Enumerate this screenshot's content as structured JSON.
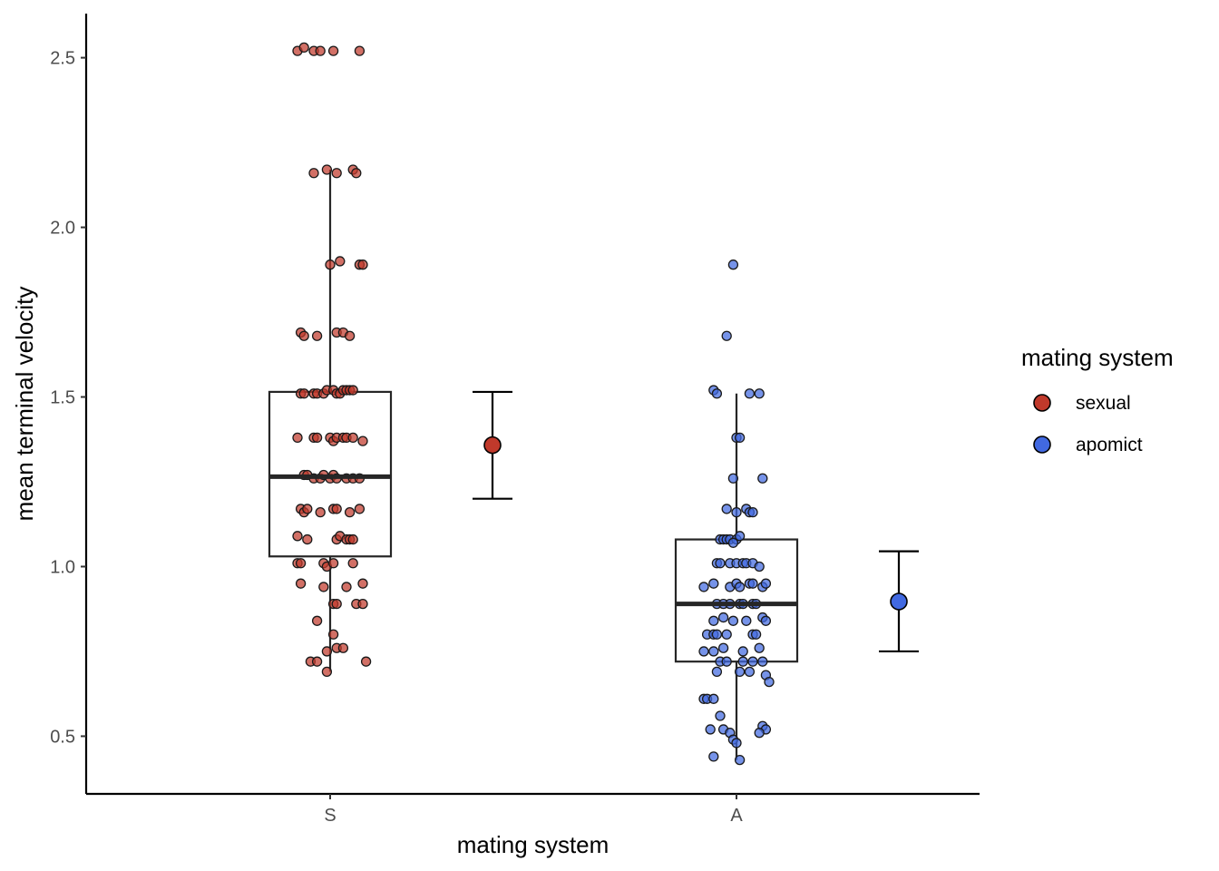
{
  "colors": {
    "sexual": "#c0392b",
    "apomict": "#4169e1",
    "box": "#262626",
    "axis": "#000000"
  },
  "chart_data": {
    "type": "box",
    "xlabel": "mating system",
    "ylabel": "mean terminal velocity",
    "ylim": [
      0.33,
      2.63
    ],
    "yticks": [
      0.5,
      1.0,
      1.5,
      2.0,
      2.5
    ],
    "ytick_labels": [
      "0.5",
      "1.0",
      "1.5",
      "2.0",
      "2.5"
    ],
    "categories": [
      "S",
      "A"
    ],
    "grid": false,
    "legend": {
      "title": "mating system",
      "position": "right",
      "entries": [
        "sexual",
        "apomict"
      ]
    },
    "series": [
      {
        "name": "sexual",
        "category": "S",
        "box": {
          "whisker_low": 0.69,
          "q1": 1.03,
          "median": 1.265,
          "q3": 1.515,
          "whisker_high": 2.17
        },
        "mean_errorbar": {
          "mean": 1.358,
          "lower": 1.2,
          "upper": 1.515
        },
        "points": [
          [
            -0.1,
            2.52
          ],
          [
            -0.08,
            2.53
          ],
          [
            -0.05,
            2.52
          ],
          [
            -0.03,
            2.52
          ],
          [
            0.01,
            2.52
          ],
          [
            0.09,
            2.52
          ],
          [
            -0.05,
            2.16
          ],
          [
            -0.01,
            2.17
          ],
          [
            0.02,
            2.16
          ],
          [
            0.07,
            2.17
          ],
          [
            0.08,
            2.16
          ],
          [
            0.0,
            1.89
          ],
          [
            0.03,
            1.9
          ],
          [
            0.09,
            1.89
          ],
          [
            0.1,
            1.89
          ],
          [
            -0.09,
            1.69
          ],
          [
            -0.08,
            1.68
          ],
          [
            -0.04,
            1.68
          ],
          [
            0.02,
            1.69
          ],
          [
            0.04,
            1.69
          ],
          [
            0.06,
            1.68
          ],
          [
            -0.09,
            1.51
          ],
          [
            -0.08,
            1.51
          ],
          [
            -0.05,
            1.51
          ],
          [
            -0.04,
            1.51
          ],
          [
            -0.02,
            1.51
          ],
          [
            -0.01,
            1.52
          ],
          [
            0.01,
            1.52
          ],
          [
            0.02,
            1.51
          ],
          [
            0.03,
            1.51
          ],
          [
            0.04,
            1.52
          ],
          [
            0.05,
            1.52
          ],
          [
            0.06,
            1.52
          ],
          [
            0.07,
            1.52
          ],
          [
            -0.1,
            1.38
          ],
          [
            -0.05,
            1.38
          ],
          [
            -0.04,
            1.38
          ],
          [
            0.0,
            1.38
          ],
          [
            0.01,
            1.37
          ],
          [
            0.02,
            1.38
          ],
          [
            0.04,
            1.38
          ],
          [
            0.05,
            1.38
          ],
          [
            0.07,
            1.38
          ],
          [
            0.1,
            1.37
          ],
          [
            -0.08,
            1.27
          ],
          [
            -0.07,
            1.27
          ],
          [
            -0.05,
            1.26
          ],
          [
            -0.03,
            1.26
          ],
          [
            -0.02,
            1.27
          ],
          [
            0.0,
            1.26
          ],
          [
            0.01,
            1.27
          ],
          [
            0.02,
            1.26
          ],
          [
            0.05,
            1.26
          ],
          [
            0.07,
            1.26
          ],
          [
            0.09,
            1.26
          ],
          [
            -0.09,
            1.17
          ],
          [
            -0.08,
            1.16
          ],
          [
            -0.07,
            1.17
          ],
          [
            -0.03,
            1.16
          ],
          [
            0.01,
            1.17
          ],
          [
            0.02,
            1.17
          ],
          [
            0.06,
            1.16
          ],
          [
            0.09,
            1.17
          ],
          [
            -0.1,
            1.09
          ],
          [
            -0.07,
            1.08
          ],
          [
            0.02,
            1.08
          ],
          [
            0.03,
            1.09
          ],
          [
            0.05,
            1.08
          ],
          [
            0.06,
            1.08
          ],
          [
            0.07,
            1.08
          ],
          [
            -0.1,
            1.01
          ],
          [
            -0.09,
            1.01
          ],
          [
            -0.02,
            1.01
          ],
          [
            -0.01,
            1.0
          ],
          [
            0.01,
            1.01
          ],
          [
            0.07,
            1.01
          ],
          [
            -0.09,
            0.95
          ],
          [
            -0.02,
            0.94
          ],
          [
            0.05,
            0.94
          ],
          [
            0.1,
            0.95
          ],
          [
            0.01,
            0.89
          ],
          [
            0.02,
            0.89
          ],
          [
            0.08,
            0.89
          ],
          [
            0.1,
            0.89
          ],
          [
            -0.04,
            0.84
          ],
          [
            0.01,
            0.8
          ],
          [
            -0.01,
            0.75
          ],
          [
            0.02,
            0.76
          ],
          [
            0.04,
            0.76
          ],
          [
            -0.06,
            0.72
          ],
          [
            -0.04,
            0.72
          ],
          [
            0.11,
            0.72
          ],
          [
            -0.01,
            0.69
          ]
        ]
      },
      {
        "name": "apomict",
        "category": "A",
        "box": {
          "whisker_low": 0.43,
          "q1": 0.72,
          "median": 0.89,
          "q3": 1.08,
          "whisker_high": 1.51
        },
        "mean_errorbar": {
          "mean": 0.897,
          "lower": 0.75,
          "upper": 1.045
        },
        "points": [
          [
            -0.01,
            1.89
          ],
          [
            -0.03,
            1.68
          ],
          [
            -0.07,
            1.52
          ],
          [
            -0.06,
            1.51
          ],
          [
            0.04,
            1.51
          ],
          [
            0.07,
            1.51
          ],
          [
            0.0,
            1.38
          ],
          [
            0.01,
            1.38
          ],
          [
            -0.01,
            1.26
          ],
          [
            0.08,
            1.26
          ],
          [
            -0.03,
            1.17
          ],
          [
            0.0,
            1.16
          ],
          [
            0.03,
            1.17
          ],
          [
            0.04,
            1.16
          ],
          [
            0.05,
            1.16
          ],
          [
            -0.05,
            1.08
          ],
          [
            -0.04,
            1.08
          ],
          [
            -0.03,
            1.08
          ],
          [
            -0.02,
            1.08
          ],
          [
            0.0,
            1.08
          ],
          [
            0.01,
            1.09
          ],
          [
            -0.01,
            1.07
          ],
          [
            -0.06,
            1.01
          ],
          [
            -0.05,
            1.01
          ],
          [
            -0.02,
            1.01
          ],
          [
            0.0,
            1.01
          ],
          [
            0.02,
            1.01
          ],
          [
            0.03,
            1.01
          ],
          [
            0.05,
            1.01
          ],
          [
            0.07,
            1.0
          ],
          [
            -0.1,
            0.94
          ],
          [
            -0.07,
            0.95
          ],
          [
            -0.02,
            0.94
          ],
          [
            0.0,
            0.95
          ],
          [
            0.01,
            0.94
          ],
          [
            0.04,
            0.95
          ],
          [
            0.05,
            0.95
          ],
          [
            0.08,
            0.94
          ],
          [
            0.09,
            0.95
          ],
          [
            -0.06,
            0.89
          ],
          [
            -0.04,
            0.89
          ],
          [
            -0.02,
            0.89
          ],
          [
            0.01,
            0.89
          ],
          [
            0.02,
            0.89
          ],
          [
            0.05,
            0.89
          ],
          [
            0.06,
            0.89
          ],
          [
            -0.07,
            0.84
          ],
          [
            -0.04,
            0.85
          ],
          [
            -0.01,
            0.84
          ],
          [
            0.03,
            0.84
          ],
          [
            0.08,
            0.85
          ],
          [
            0.09,
            0.84
          ],
          [
            -0.09,
            0.8
          ],
          [
            -0.07,
            0.8
          ],
          [
            -0.06,
            0.8
          ],
          [
            -0.03,
            0.8
          ],
          [
            0.05,
            0.8
          ],
          [
            0.06,
            0.8
          ],
          [
            -0.1,
            0.75
          ],
          [
            -0.07,
            0.75
          ],
          [
            -0.04,
            0.76
          ],
          [
            0.02,
            0.75
          ],
          [
            0.07,
            0.76
          ],
          [
            -0.05,
            0.72
          ],
          [
            -0.03,
            0.72
          ],
          [
            0.02,
            0.72
          ],
          [
            0.05,
            0.72
          ],
          [
            0.08,
            0.72
          ],
          [
            -0.06,
            0.69
          ],
          [
            0.01,
            0.69
          ],
          [
            0.04,
            0.69
          ],
          [
            0.09,
            0.68
          ],
          [
            0.1,
            0.66
          ],
          [
            -0.1,
            0.61
          ],
          [
            -0.09,
            0.61
          ],
          [
            -0.07,
            0.61
          ],
          [
            -0.05,
            0.56
          ],
          [
            -0.08,
            0.52
          ],
          [
            -0.04,
            0.52
          ],
          [
            -0.02,
            0.51
          ],
          [
            0.08,
            0.53
          ],
          [
            0.09,
            0.52
          ],
          [
            0.07,
            0.51
          ],
          [
            -0.01,
            0.49
          ],
          [
            0.0,
            0.48
          ],
          [
            -0.07,
            0.44
          ],
          [
            0.01,
            0.43
          ]
        ]
      }
    ]
  }
}
